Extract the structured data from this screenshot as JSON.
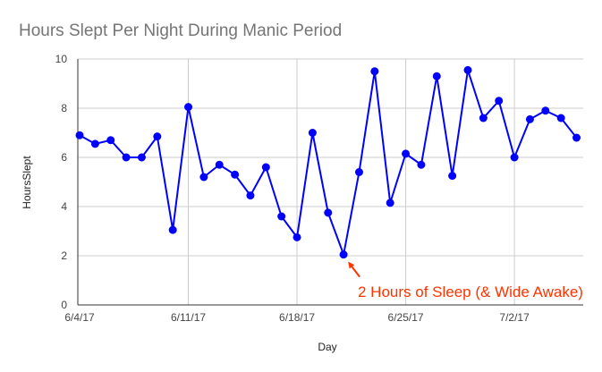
{
  "chart_data": {
    "type": "line",
    "title": "Hours Slept Per Night During Manic Period",
    "xlabel": "Day",
    "ylabel": "HoursSlept",
    "x_tick_labels": [
      "6/4/17",
      "6/11/17",
      "6/18/17",
      "6/25/17",
      "7/2/17"
    ],
    "y_tick_labels": [
      "0",
      "2",
      "4",
      "6",
      "8",
      "10"
    ],
    "ylim": [
      0,
      10
    ],
    "grid": true,
    "legend": "none",
    "x": [
      "6/4/17",
      "6/5/17",
      "6/6/17",
      "6/7/17",
      "6/8/17",
      "6/9/17",
      "6/10/17",
      "6/11/17",
      "6/12/17",
      "6/13/17",
      "6/14/17",
      "6/15/17",
      "6/16/17",
      "6/17/17",
      "6/18/17",
      "6/19/17",
      "6/20/17",
      "6/21/17",
      "6/22/17",
      "6/23/17",
      "6/24/17",
      "6/25/17",
      "6/26/17",
      "6/27/17",
      "6/28/17",
      "6/29/17",
      "6/30/17",
      "7/1/17",
      "7/2/17",
      "7/3/17",
      "7/4/17",
      "7/5/17",
      "7/6/17"
    ],
    "series": [
      {
        "values": [
          6.9,
          6.55,
          6.7,
          6.0,
          6.0,
          6.85,
          3.05,
          8.05,
          5.2,
          5.7,
          5.3,
          4.45,
          5.6,
          3.6,
          2.75,
          7.0,
          3.75,
          2.05,
          5.4,
          9.5,
          4.15,
          6.15,
          5.7,
          9.3,
          5.25,
          9.55,
          7.6,
          8.3,
          6.0,
          7.55,
          7.9,
          7.6,
          6.8
        ],
        "color": "#0000ff"
      }
    ],
    "annotation": {
      "text": "2 Hours of Sleep (& Wide Awake)",
      "target_x": "6/21/17",
      "target_y": 2.05,
      "color": "#ff3300"
    }
  }
}
